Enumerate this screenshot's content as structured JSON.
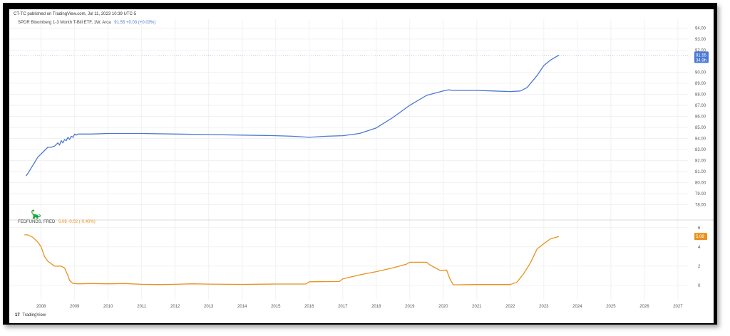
{
  "header": {
    "published": "CT-TC published on TradingView.com, Jul 11, 2023 10:39 UTC-5"
  },
  "pane_top": {
    "name": "SPDR Bloomberg 1-3 Month T-Bill ETF, 1W, Arca",
    "value": "91.55 +0.03 (+0.03%)"
  },
  "pane_bottom": {
    "name": "FEDFUNDS, FRED",
    "value": "5.08 -0.02 (-0.40%)"
  },
  "footer": {
    "brand": "TradingView",
    "brand_mark": "17"
  },
  "icons": {
    "mascot": "dinosaur-icon",
    "logo": "tradingview-logo-icon"
  },
  "chart_data": [
    {
      "type": "line",
      "title": "SPDR Bloomberg 1-3 Month T-Bill ETF, 1W, Arca",
      "color": "#4a78d2",
      "x": [
        2007.55,
        2007.62,
        2007.7,
        2007.8,
        2007.9,
        2008.0,
        2008.1,
        2008.2,
        2008.3,
        2008.4,
        2008.5,
        2008.55,
        2008.6,
        2008.65,
        2008.7,
        2008.75,
        2008.8,
        2008.85,
        2008.9,
        2008.95,
        2009.0,
        2009.05,
        2009.1,
        2009.2,
        2009.5,
        2010.0,
        2011.0,
        2012.0,
        2013.0,
        2014.0,
        2015.0,
        2015.5,
        2016.0,
        2016.5,
        2017.0,
        2017.5,
        2018.0,
        2018.5,
        2019.0,
        2019.5,
        2020.0,
        2020.15,
        2020.3,
        2021.0,
        2021.5,
        2022.0,
        2022.3,
        2022.5,
        2022.8,
        2023.0,
        2023.2,
        2023.45
      ],
      "values": [
        80.6,
        80.9,
        81.3,
        81.8,
        82.3,
        82.6,
        82.9,
        83.2,
        83.2,
        83.3,
        83.6,
        83.4,
        83.8,
        83.6,
        83.9,
        83.8,
        84.1,
        83.9,
        84.2,
        84.1,
        84.4,
        84.3,
        84.4,
        84.4,
        84.4,
        84.45,
        84.45,
        84.4,
        84.35,
        84.3,
        84.25,
        84.2,
        84.1,
        84.2,
        84.25,
        84.45,
        84.95,
        85.9,
        87.0,
        87.9,
        88.3,
        88.4,
        88.35,
        88.35,
        88.3,
        88.25,
        88.3,
        88.6,
        89.7,
        90.6,
        91.1,
        91.55
      ],
      "last_value": "91.55",
      "last_value_sub": "34.9h",
      "ylim": [
        77,
        94.8
      ],
      "y_ticks": [
        "94.00",
        "93.00",
        "92.00",
        "90.00",
        "89.00",
        "88.00",
        "87.00",
        "86.00",
        "85.00",
        "84.00",
        "83.00",
        "82.00",
        "81.00",
        "80.00",
        "79.00",
        "78.00"
      ],
      "xlim": [
        2007.05,
        2027.3
      ],
      "x_ticks": [
        "2008",
        "2009",
        "2010",
        "2011",
        "2012",
        "2013",
        "2014",
        "2015",
        "2016",
        "2017",
        "2018",
        "2019",
        "2020",
        "2021",
        "2022",
        "2023",
        "2024",
        "2025",
        "2026",
        "2027"
      ],
      "grid": true
    },
    {
      "type": "line",
      "title": "FEDFUNDS, FRED",
      "color": "#e8921f",
      "x": [
        2007.5,
        2007.6,
        2007.75,
        2007.9,
        2008.0,
        2008.1,
        2008.2,
        2008.4,
        2008.5,
        2008.6,
        2008.7,
        2008.8,
        2008.85,
        2008.95,
        2009.1,
        2009.5,
        2010.0,
        2010.5,
        2011.0,
        2011.5,
        2012.0,
        2012.5,
        2013.0,
        2014.0,
        2015.0,
        2015.9,
        2016.0,
        2016.9,
        2017.0,
        2017.5,
        2018.0,
        2018.5,
        2018.9,
        2019.0,
        2019.5,
        2019.6,
        2019.75,
        2019.9,
        2020.1,
        2020.2,
        2020.3,
        2021.0,
        2022.0,
        2022.2,
        2022.4,
        2022.6,
        2022.8,
        2023.0,
        2023.2,
        2023.45
      ],
      "values": [
        5.25,
        5.25,
        5.0,
        4.5,
        4.0,
        3.0,
        2.5,
        2.0,
        2.0,
        2.0,
        1.8,
        1.0,
        0.5,
        0.2,
        0.15,
        0.18,
        0.15,
        0.18,
        0.1,
        0.08,
        0.1,
        0.15,
        0.12,
        0.09,
        0.13,
        0.13,
        0.37,
        0.4,
        0.66,
        1.08,
        1.42,
        1.82,
        2.2,
        2.4,
        2.4,
        2.12,
        1.83,
        1.55,
        1.58,
        0.65,
        0.05,
        0.08,
        0.08,
        0.33,
        1.21,
        2.33,
        3.78,
        4.33,
        4.83,
        5.08
      ],
      "last_value": "5.08",
      "ylim": [
        -1.5,
        6.5
      ],
      "y_ticks": [
        "6",
        "4",
        "2",
        "0"
      ],
      "grid": true
    }
  ]
}
